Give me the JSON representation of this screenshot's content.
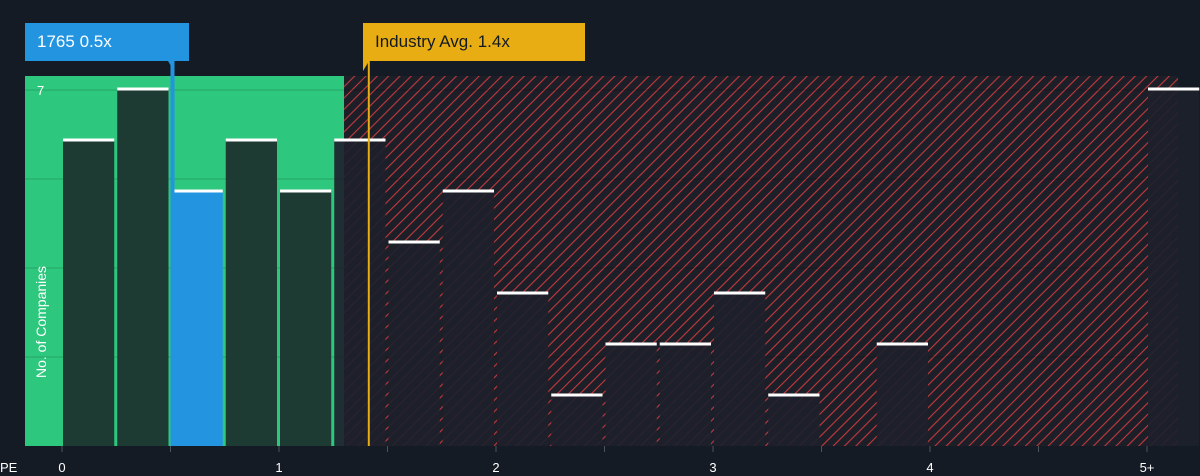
{
  "company_callout": {
    "ticker": "1765",
    "value": "0.5x"
  },
  "industry_callout": {
    "label": "Industry Avg. 1.4x"
  },
  "colors": {
    "background": "#151b24",
    "undervalued_zone": "#2ec77e",
    "overvalued_hatch": "#c4393f",
    "company_bar": "#2394e0",
    "industry_line": "#e8ad12",
    "bar": "#1e3b33",
    "bar_over": "#1d212b",
    "bar_cap": "#ffffff"
  },
  "chart_data": {
    "type": "bar",
    "title": "",
    "xlabel": "PE",
    "ylabel": "No. of Companies",
    "xlim": [
      0,
      5.2
    ],
    "ylim": [
      0,
      7.3
    ],
    "x_ticks": [
      "0",
      "1",
      "2",
      "3",
      "4",
      "5+"
    ],
    "x_tick_values": [
      0,
      1,
      2,
      3,
      4,
      5
    ],
    "y_ticks": [
      "7"
    ],
    "y_tick_values": [
      7
    ],
    "bin_width": 0.25,
    "bins": [
      {
        "start": 0.0,
        "count": 6
      },
      {
        "start": 0.25,
        "count": 7
      },
      {
        "start": 0.5,
        "count": 5,
        "highlight": true
      },
      {
        "start": 0.75,
        "count": 6
      },
      {
        "start": 1.0,
        "count": 5
      },
      {
        "start": 1.25,
        "count": 6
      },
      {
        "start": 1.5,
        "count": 4
      },
      {
        "start": 1.75,
        "count": 5
      },
      {
        "start": 2.0,
        "count": 3
      },
      {
        "start": 2.25,
        "count": 1
      },
      {
        "start": 2.5,
        "count": 2
      },
      {
        "start": 2.75,
        "count": 2
      },
      {
        "start": 3.0,
        "count": 3
      },
      {
        "start": 3.25,
        "count": 1
      },
      {
        "start": 3.5,
        "count": 0
      },
      {
        "start": 3.75,
        "count": 2
      },
      {
        "start": 5.0,
        "count": 7
      }
    ],
    "company_value": 0.5,
    "industry_average": 1.4,
    "fair_zone_upper": 1.3
  }
}
